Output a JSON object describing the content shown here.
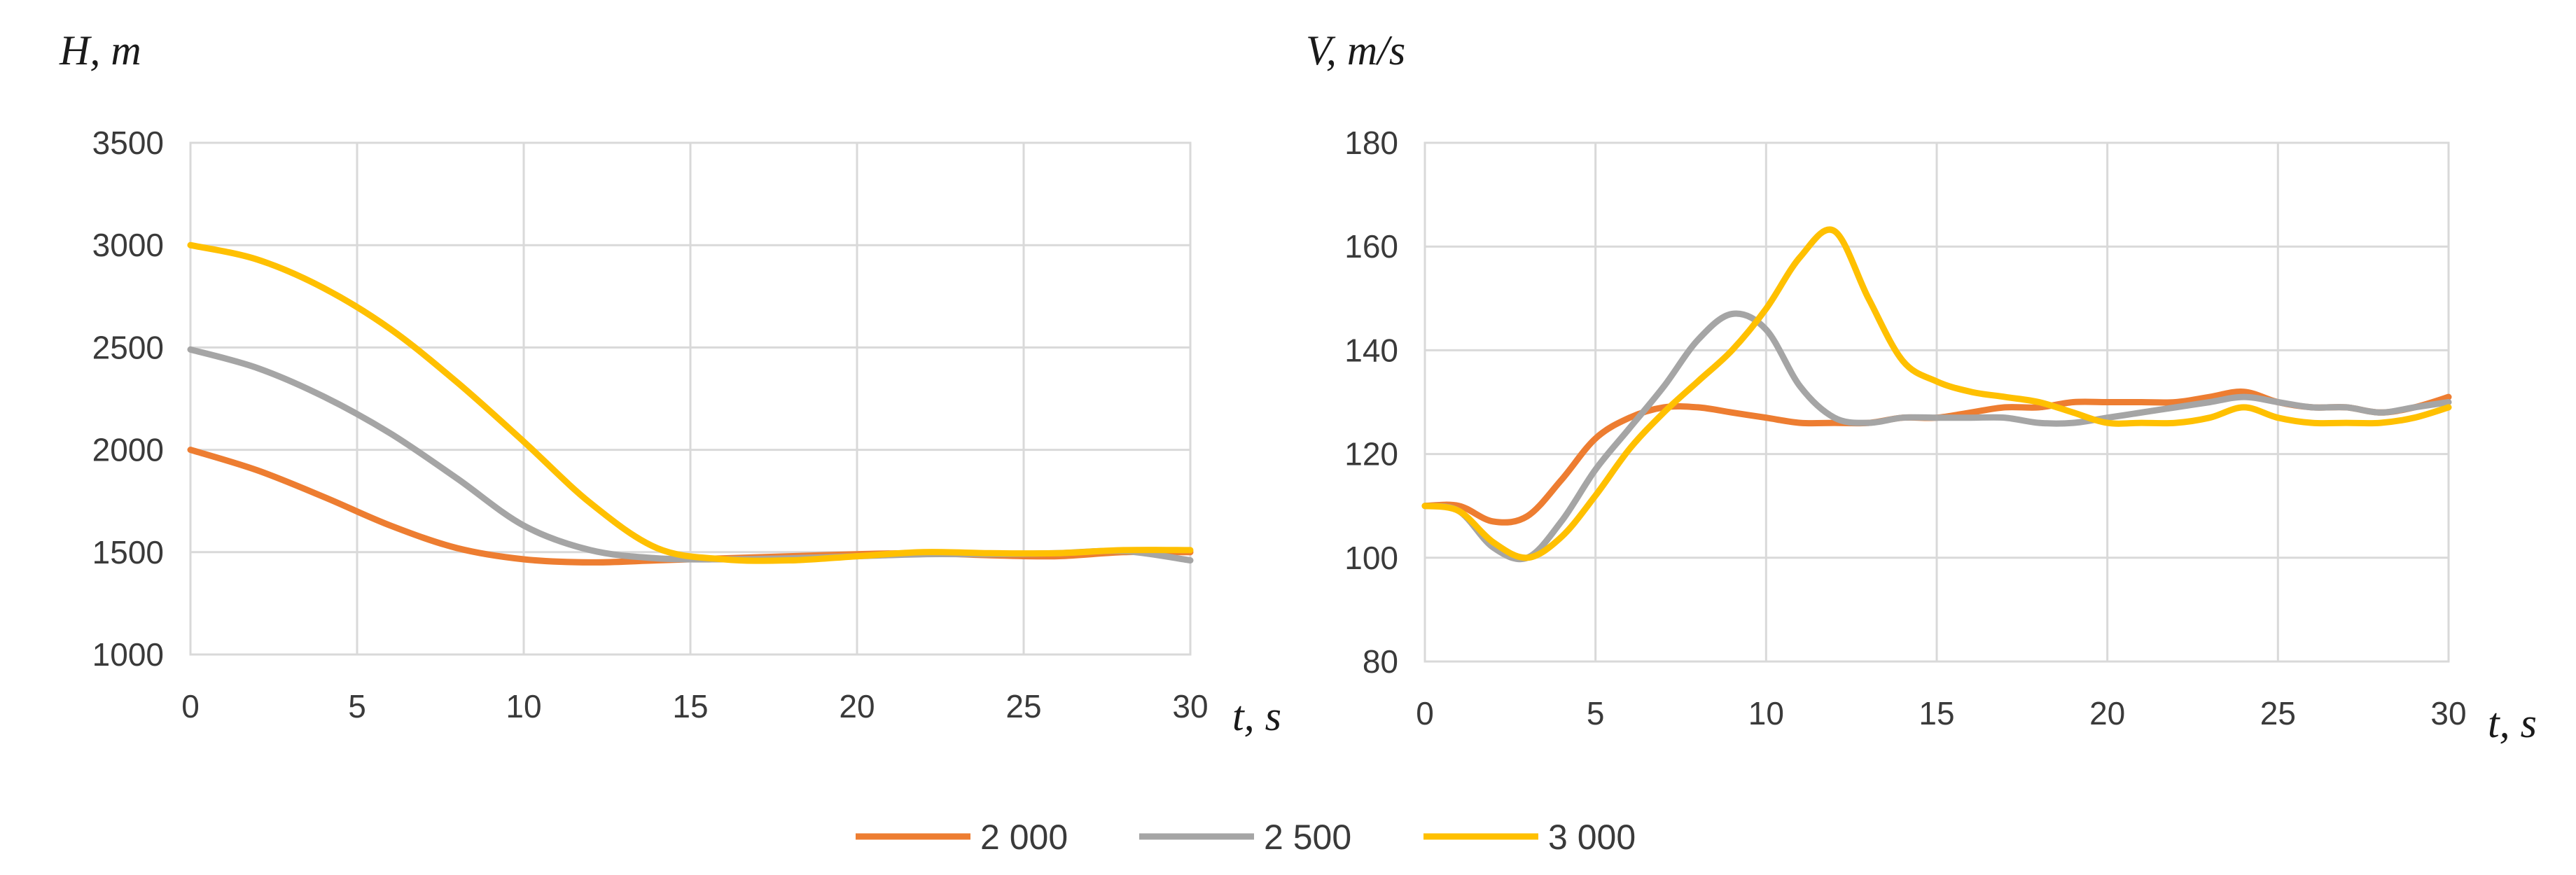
{
  "colors": {
    "2000": "#ED7D31",
    "2500": "#A5A5A5",
    "3000": "#FFC000"
  },
  "legend": [
    {
      "label": "2 000",
      "color": "#ED7D31"
    },
    {
      "label": "2 500",
      "color": "#A5A5A5"
    },
    {
      "label": "3 000",
      "color": "#FFC000"
    }
  ],
  "chart_data": [
    {
      "type": "line",
      "ylabel": "H, m",
      "xlabel": "t, s",
      "xlim": [
        0,
        30
      ],
      "ylim": [
        1000,
        3500
      ],
      "xticks": [
        "0",
        "5",
        "10",
        "15",
        "20",
        "25",
        "30"
      ],
      "yticks": [
        "1000",
        "1500",
        "2000",
        "2500",
        "3000",
        "3500"
      ],
      "grid": true,
      "x": [
        0,
        2,
        4,
        6,
        8,
        10,
        12,
        14,
        16,
        18,
        20,
        22,
        24,
        26,
        28,
        30
      ],
      "series": [
        {
          "name": "2 000",
          "color": "#ED7D31",
          "values": [
            2000,
            1900,
            1770,
            1630,
            1520,
            1465,
            1450,
            1460,
            1470,
            1480,
            1490,
            1495,
            1485,
            1480,
            1500,
            1500
          ]
        },
        {
          "name": "2 500",
          "color": "#A5A5A5",
          "values": [
            2490,
            2400,
            2260,
            2080,
            1860,
            1630,
            1510,
            1470,
            1465,
            1470,
            1480,
            1490,
            1490,
            1495,
            1505,
            1460
          ]
        },
        {
          "name": "3 000",
          "color": "#FFC000",
          "values": [
            3000,
            2930,
            2790,
            2590,
            2330,
            2040,
            1740,
            1520,
            1465,
            1460,
            1480,
            1500,
            1495,
            1495,
            1510,
            1510
          ]
        }
      ]
    },
    {
      "type": "line",
      "ylabel": "V, m/s",
      "xlabel": "t, s",
      "xlim": [
        0,
        30
      ],
      "ylim": [
        80,
        180
      ],
      "xticks": [
        "0",
        "5",
        "10",
        "15",
        "20",
        "25",
        "30"
      ],
      "yticks": [
        "80",
        "100",
        "120",
        "140",
        "160",
        "180"
      ],
      "grid": true,
      "x": [
        0,
        1,
        2,
        3,
        4,
        5,
        6,
        7,
        8,
        9,
        10,
        11,
        12,
        13,
        14,
        15,
        16,
        17,
        18,
        19,
        20,
        21,
        22,
        23,
        24,
        25,
        26,
        27,
        28,
        29,
        30
      ],
      "series": [
        {
          "name": "2 000",
          "color": "#ED7D31",
          "values": [
            110,
            110,
            107,
            108,
            115,
            123,
            127,
            129,
            129,
            128,
            127,
            126,
            126,
            126,
            127,
            127,
            128,
            129,
            129,
            130,
            130,
            130,
            130,
            131,
            132,
            130,
            129,
            129,
            128,
            129,
            131
          ]
        },
        {
          "name": "2 500",
          "color": "#A5A5A5",
          "values": [
            110,
            109,
            102,
            100,
            107,
            117,
            125,
            133,
            142,
            147,
            144,
            133,
            127,
            126,
            127,
            127,
            127,
            127,
            126,
            126,
            127,
            128,
            129,
            130,
            131,
            130,
            129,
            129,
            128,
            129,
            130
          ]
        },
        {
          "name": "3 000",
          "color": "#FFC000",
          "values": [
            110,
            109,
            103,
            100,
            104,
            112,
            121,
            128,
            134,
            140,
            148,
            158,
            163,
            150,
            138,
            134,
            132,
            131,
            130,
            128,
            126,
            126,
            126,
            127,
            129,
            127,
            126,
            126,
            126,
            127,
            129
          ]
        }
      ]
    }
  ]
}
